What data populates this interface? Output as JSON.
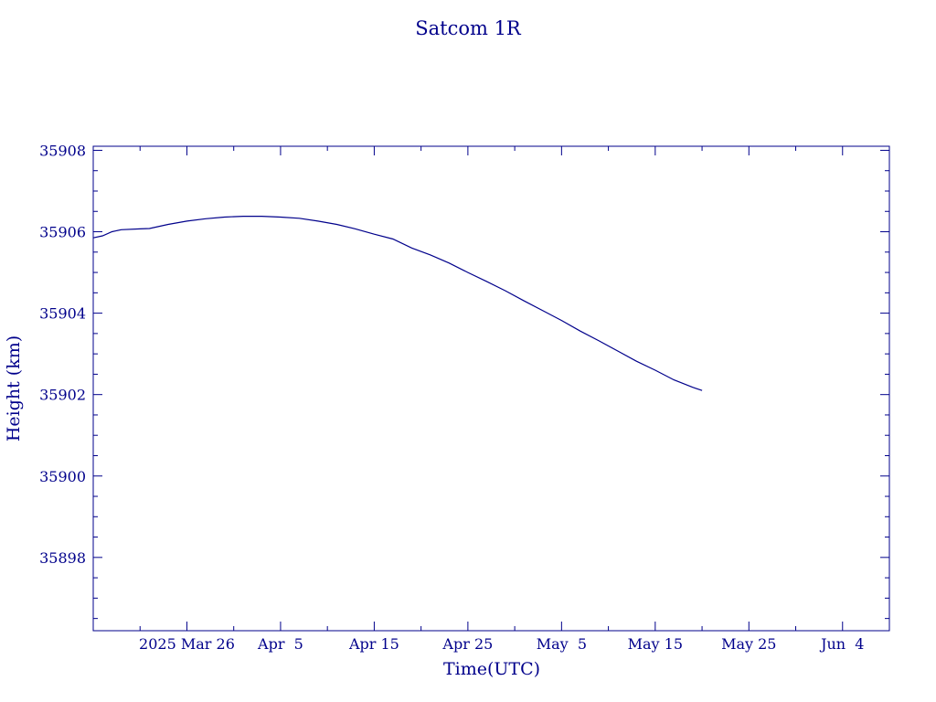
{
  "colors": {
    "ink": "#00008b",
    "background": "#ffffff"
  },
  "chart_data": {
    "type": "line",
    "title": "Satcom 1R",
    "xlabel": "Time(UTC)",
    "ylabel": "Height (km)",
    "x_tick_labels": [
      "2025 Mar 26",
      "Apr  5",
      "Apr 15",
      "Apr 25",
      "May  5",
      "May 15",
      "May 25",
      "Jun  4"
    ],
    "y_tick_labels": [
      "35898",
      "35900",
      "35902",
      "35904",
      "35906",
      "35908"
    ],
    "xlim": [
      "2025-03-16",
      "2025-06-09"
    ],
    "ylim": [
      35896.2,
      35908.1
    ],
    "grid": false,
    "legend": "none",
    "series": [
      {
        "points": [
          [
            "2025-03-16",
            35905.85
          ],
          [
            "2025-03-17",
            35905.9
          ],
          [
            "2025-03-18",
            35906.0
          ],
          [
            "2025-03-19",
            35906.05
          ],
          [
            "2025-03-21",
            35906.07
          ],
          [
            "2025-03-22",
            35906.08
          ],
          [
            "2025-03-24",
            35906.18
          ],
          [
            "2025-03-26",
            35906.26
          ],
          [
            "2025-03-28",
            35906.32
          ],
          [
            "2025-03-30",
            35906.36
          ],
          [
            "2025-04-01",
            35906.38
          ],
          [
            "2025-04-03",
            35906.38
          ],
          [
            "2025-04-05",
            35906.36
          ],
          [
            "2025-04-07",
            35906.33
          ],
          [
            "2025-04-09",
            35906.26
          ],
          [
            "2025-04-11",
            35906.18
          ],
          [
            "2025-04-13",
            35906.07
          ],
          [
            "2025-04-15",
            35905.94
          ],
          [
            "2025-04-17",
            35905.82
          ],
          [
            "2025-04-19",
            35905.6
          ],
          [
            "2025-04-21",
            35905.43
          ],
          [
            "2025-04-23",
            35905.23
          ],
          [
            "2025-04-25",
            35905.0
          ],
          [
            "2025-04-27",
            35904.78
          ],
          [
            "2025-04-29",
            35904.55
          ],
          [
            "2025-05-01",
            35904.3
          ],
          [
            "2025-05-03",
            35904.06
          ],
          [
            "2025-05-05",
            35903.82
          ],
          [
            "2025-05-07",
            35903.56
          ],
          [
            "2025-05-09",
            35903.32
          ],
          [
            "2025-05-11",
            35903.07
          ],
          [
            "2025-05-13",
            35902.82
          ],
          [
            "2025-05-15",
            35902.6
          ],
          [
            "2025-05-17",
            35902.36
          ],
          [
            "2025-05-19",
            35902.18
          ],
          [
            "2025-05-20",
            35902.1
          ]
        ]
      }
    ]
  }
}
